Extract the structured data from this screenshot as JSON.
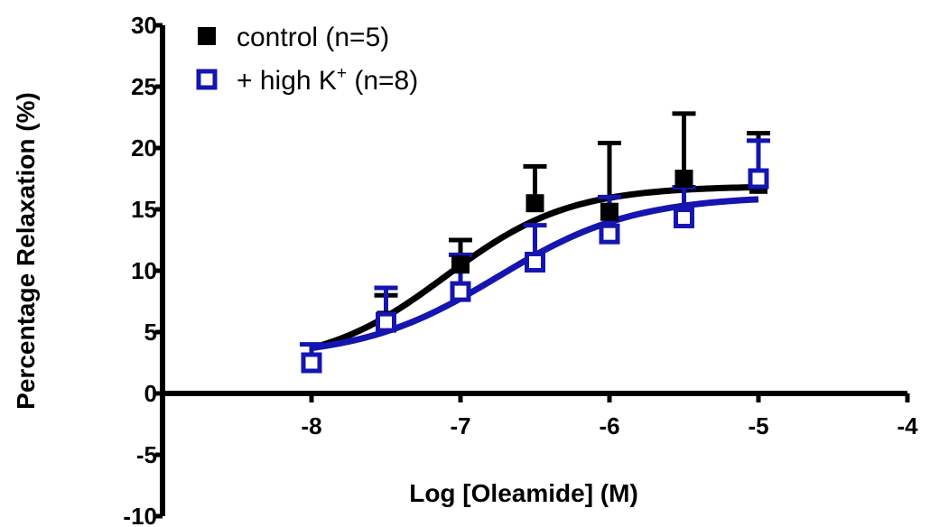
{
  "chart_data": {
    "type": "scatter",
    "xlabel": "Log [Oleamide] (M)",
    "ylabel": "Percentage Relaxation (%)",
    "xlim": [
      -9,
      -4
    ],
    "ylim": [
      -10,
      30
    ],
    "x_ticks": [
      -8,
      -7,
      -6,
      -5,
      -4
    ],
    "y_ticks": [
      -10,
      -5,
      0,
      5,
      10,
      15,
      20,
      25,
      30
    ],
    "x_tick_labels": [
      "-8",
      "-7",
      "-6",
      "-5",
      "-4"
    ],
    "y_tick_labels": [
      "-10",
      "-5",
      "0",
      "5",
      "10",
      "15",
      "20",
      "25",
      "30"
    ],
    "grid": false,
    "legend_position": "top-left",
    "series": [
      {
        "name": "control (n=5)",
        "legend_prefix": "control (n=5)",
        "legend_sup": "",
        "legend_suffix": "",
        "color": "#000000",
        "marker": "filled-square",
        "x": [
          -8,
          -7.5,
          -7,
          -6.5,
          -6,
          -5.5,
          -5
        ],
        "y": [
          2.5,
          6,
          10.5,
          15.5,
          14.8,
          17.5,
          17
        ],
        "error": [
          0,
          2,
          2,
          3,
          5.6,
          5.3,
          4.2
        ],
        "fit": {
          "bottom": 2.2,
          "top": 16.9,
          "logEC50": -7.1,
          "hill": 1.05
        }
      },
      {
        "name": "+ high K+ (n=8)",
        "legend_prefix": "+ high K",
        "legend_sup": "+",
        "legend_suffix": " (n=8)",
        "color": "#1515b0",
        "marker": "open-square",
        "x": [
          -8,
          -7.5,
          -7,
          -6.5,
          -6,
          -5.5,
          -5
        ],
        "y": [
          2.5,
          5.8,
          8.3,
          10.7,
          13,
          14.3,
          17.5
        ],
        "error": [
          1.5,
          2.8,
          3,
          3,
          3,
          2.5,
          3.1
        ],
        "fit": {
          "bottom": 2.9,
          "top": 16.1,
          "logEC50": -6.75,
          "hill": 0.95
        }
      }
    ]
  }
}
